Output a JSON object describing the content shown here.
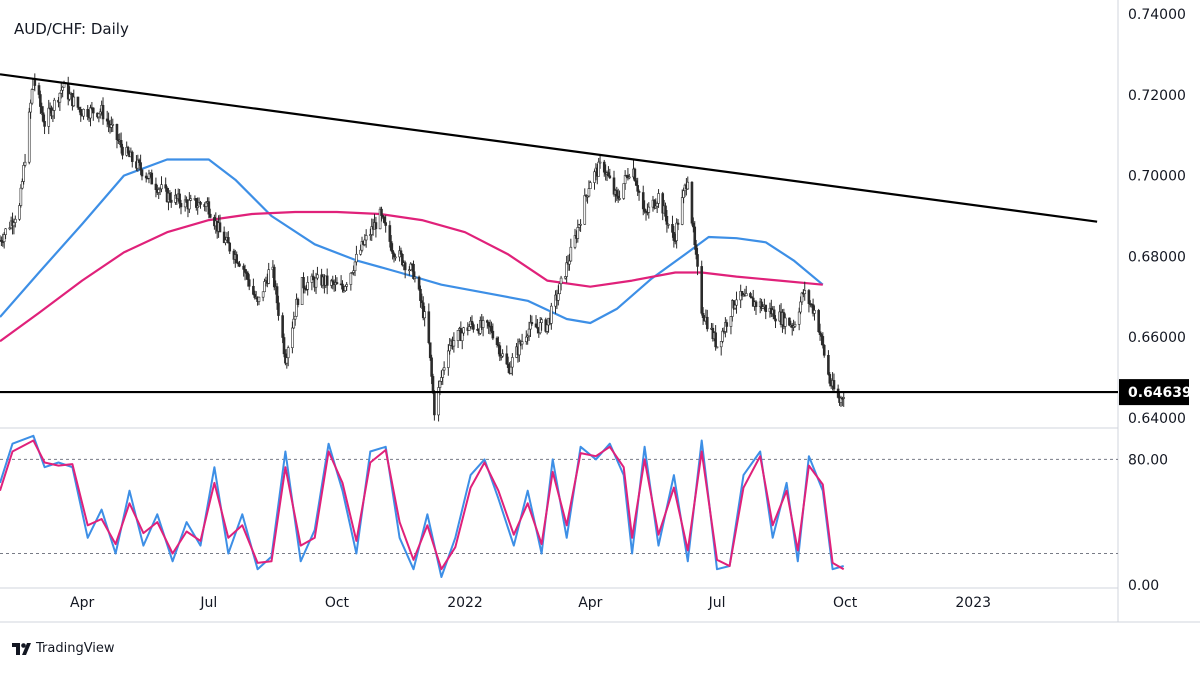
{
  "title": "AUD/CHF: Daily",
  "brand": {
    "name": "TradingView",
    "icon": "tradingview-logo-icon"
  },
  "colors": {
    "candle": "#2b2b2b",
    "sma_short": "#3d8fe6",
    "sma_long": "#e0217a",
    "trendline": "#000000",
    "stoch_k": "#3d8fe6",
    "stoch_d": "#e0217a",
    "price_badge_bg": "#000000",
    "price_badge_text": "#ffffff"
  },
  "chart_data": [
    {
      "type": "candlestick",
      "panel": "price",
      "title": "AUD/CHF: Daily",
      "x_axis": {
        "start": "2021-02-01",
        "end": "2023-04-15",
        "ticks": [
          {
            "date": "2021-04-01",
            "label": "Apr"
          },
          {
            "date": "2021-07-01",
            "label": "Jul"
          },
          {
            "date": "2021-10-01",
            "label": "Oct"
          },
          {
            "date": "2022-01-01",
            "label": "2022"
          },
          {
            "date": "2022-04-01",
            "label": "Apr"
          },
          {
            "date": "2022-07-01",
            "label": "Jul"
          },
          {
            "date": "2022-10-01",
            "label": "Oct"
          },
          {
            "date": "2023-01-01",
            "label": "2023"
          }
        ]
      },
      "y_axis": {
        "range": [
          0.6375,
          0.7435
        ],
        "ticks": [
          "0.64000",
          "0.66000",
          "0.68000",
          "0.70000",
          "0.72000",
          "0.74000"
        ]
      },
      "last_price": "0.64639",
      "price_path": [
        [
          "2021-02-01",
          0.684
        ],
        [
          "2021-02-15",
          0.692
        ],
        [
          "2021-02-25",
          0.724
        ],
        [
          "2021-03-05",
          0.713
        ],
        [
          "2021-03-18",
          0.722
        ],
        [
          "2021-03-31",
          0.716
        ],
        [
          "2021-04-15",
          0.716
        ],
        [
          "2021-05-01",
          0.706
        ],
        [
          "2021-05-15",
          0.701
        ],
        [
          "2021-06-01",
          0.695
        ],
        [
          "2021-06-15",
          0.693
        ],
        [
          "2021-06-30",
          0.693
        ],
        [
          "2021-07-10",
          0.685
        ],
        [
          "2021-07-25",
          0.678
        ],
        [
          "2021-08-05",
          0.668
        ],
        [
          "2021-08-15",
          0.678
        ],
        [
          "2021-08-25",
          0.655
        ],
        [
          "2021-09-05",
          0.673
        ],
        [
          "2021-09-20",
          0.674
        ],
        [
          "2021-10-05",
          0.672
        ],
        [
          "2021-10-20",
          0.683
        ],
        [
          "2021-11-01",
          0.69
        ],
        [
          "2021-11-10",
          0.682
        ],
        [
          "2021-11-25",
          0.676
        ],
        [
          "2021-12-05",
          0.662
        ],
        [
          "2021-12-10",
          0.642
        ],
        [
          "2021-12-20",
          0.658
        ],
        [
          "2022-01-05",
          0.663
        ],
        [
          "2022-01-20",
          0.662
        ],
        [
          "2022-02-01",
          0.652
        ],
        [
          "2022-02-15",
          0.662
        ],
        [
          "2022-03-01",
          0.663
        ],
        [
          "2022-03-10",
          0.672
        ],
        [
          "2022-03-20",
          0.683
        ],
        [
          "2022-04-01",
          0.699
        ],
        [
          "2022-04-10",
          0.703
        ],
        [
          "2022-04-20",
          0.694
        ],
        [
          "2022-05-01",
          0.703
        ],
        [
          "2022-05-10",
          0.69
        ],
        [
          "2022-05-20",
          0.695
        ],
        [
          "2022-05-31",
          0.684
        ],
        [
          "2022-06-10",
          0.7
        ],
        [
          "2022-06-15",
          0.682
        ],
        [
          "2022-06-20",
          0.667
        ],
        [
          "2022-07-01",
          0.658
        ],
        [
          "2022-07-15",
          0.67
        ],
        [
          "2022-08-01",
          0.668
        ],
        [
          "2022-08-15",
          0.665
        ],
        [
          "2022-08-25",
          0.663
        ],
        [
          "2022-09-01",
          0.671
        ],
        [
          "2022-09-10",
          0.666
        ],
        [
          "2022-09-20",
          0.649
        ],
        [
          "2022-09-27",
          0.644
        ],
        [
          "2022-09-30",
          0.6464
        ]
      ],
      "overlays": [
        {
          "kind": "moving_average",
          "color_key": "sma_short",
          "points": [
            [
              "2021-02-01",
              0.665
            ],
            [
              "2021-03-01",
              0.676
            ],
            [
              "2021-04-01",
              0.688
            ],
            [
              "2021-05-01",
              0.7
            ],
            [
              "2021-06-01",
              0.704
            ],
            [
              "2021-07-01",
              0.704
            ],
            [
              "2021-07-20",
              0.699
            ],
            [
              "2021-08-15",
              0.69
            ],
            [
              "2021-09-15",
              0.683
            ],
            [
              "2021-10-15",
              0.679
            ],
            [
              "2021-11-15",
              0.676
            ],
            [
              "2021-12-15",
              0.673
            ],
            [
              "2022-01-15",
              0.671
            ],
            [
              "2022-02-15",
              0.669
            ],
            [
              "2022-03-15",
              0.6645
            ],
            [
              "2022-04-01",
              0.6635
            ],
            [
              "2022-04-20",
              0.667
            ],
            [
              "2022-05-15",
              0.6745
            ],
            [
              "2022-06-10",
              0.681
            ],
            [
              "2022-06-25",
              0.6848
            ],
            [
              "2022-07-15",
              0.6845
            ],
            [
              "2022-08-05",
              0.6835
            ],
            [
              "2022-08-25",
              0.679
            ],
            [
              "2022-09-15",
              0.673
            ]
          ]
        },
        {
          "kind": "moving_average",
          "color_key": "sma_long",
          "points": [
            [
              "2021-02-01",
              0.659
            ],
            [
              "2021-03-01",
              0.666
            ],
            [
              "2021-04-01",
              0.674
            ],
            [
              "2021-05-01",
              0.681
            ],
            [
              "2021-06-01",
              0.686
            ],
            [
              "2021-07-01",
              0.689
            ],
            [
              "2021-08-01",
              0.6905
            ],
            [
              "2021-09-01",
              0.691
            ],
            [
              "2021-10-01",
              0.691
            ],
            [
              "2021-11-01",
              0.6905
            ],
            [
              "2021-12-01",
              0.689
            ],
            [
              "2022-01-01",
              0.686
            ],
            [
              "2022-02-01",
              0.6805
            ],
            [
              "2022-03-01",
              0.674
            ],
            [
              "2022-04-01",
              0.6725
            ],
            [
              "2022-05-01",
              0.674
            ],
            [
              "2022-06-01",
              0.676
            ],
            [
              "2022-06-20",
              0.676
            ],
            [
              "2022-07-15",
              0.675
            ],
            [
              "2022-08-15",
              0.674
            ],
            [
              "2022-09-15",
              0.673
            ]
          ]
        },
        {
          "kind": "trendline",
          "color_key": "trendline",
          "points": [
            [
              "2021-02-01",
              0.7251
            ],
            [
              "2023-03-31",
              0.6886
            ]
          ]
        },
        {
          "kind": "horizontal_line",
          "color_key": "trendline",
          "value": 0.6464
        }
      ]
    },
    {
      "type": "line",
      "panel": "oscillator",
      "y_axis": {
        "range": [
          -2,
          100
        ],
        "ticks": [
          "0.00",
          "80.00"
        ],
        "levels": [
          80,
          20
        ]
      },
      "series": [
        {
          "color_key": "stoch_k",
          "points": [
            [
              "2021-02-01",
              65
            ],
            [
              "2021-02-10",
              90
            ],
            [
              "2021-02-25",
              95
            ],
            [
              "2021-03-05",
              75
            ],
            [
              "2021-03-15",
              78
            ],
            [
              "2021-03-25",
              75
            ],
            [
              "2021-04-05",
              30
            ],
            [
              "2021-04-15",
              48
            ],
            [
              "2021-04-25",
              20
            ],
            [
              "2021-05-05",
              60
            ],
            [
              "2021-05-15",
              25
            ],
            [
              "2021-05-25",
              45
            ],
            [
              "2021-06-05",
              15
            ],
            [
              "2021-06-15",
              40
            ],
            [
              "2021-06-25",
              25
            ],
            [
              "2021-07-05",
              75
            ],
            [
              "2021-07-15",
              20
            ],
            [
              "2021-07-25",
              45
            ],
            [
              "2021-08-05",
              10
            ],
            [
              "2021-08-15",
              18
            ],
            [
              "2021-08-25",
              85
            ],
            [
              "2021-09-05",
              15
            ],
            [
              "2021-09-15",
              35
            ],
            [
              "2021-09-25",
              90
            ],
            [
              "2021-10-05",
              60
            ],
            [
              "2021-10-15",
              20
            ],
            [
              "2021-10-25",
              85
            ],
            [
              "2021-11-05",
              88
            ],
            [
              "2021-11-15",
              30
            ],
            [
              "2021-11-25",
              10
            ],
            [
              "2021-12-05",
              45
            ],
            [
              "2021-12-15",
              5
            ],
            [
              "2021-12-25",
              30
            ],
            [
              "2022-01-05",
              70
            ],
            [
              "2022-01-15",
              80
            ],
            [
              "2022-01-25",
              55
            ],
            [
              "2022-02-05",
              25
            ],
            [
              "2022-02-15",
              60
            ],
            [
              "2022-02-25",
              20
            ],
            [
              "2022-03-05",
              80
            ],
            [
              "2022-03-15",
              30
            ],
            [
              "2022-03-25",
              88
            ],
            [
              "2022-04-05",
              80
            ],
            [
              "2022-04-15",
              90
            ],
            [
              "2022-04-25",
              70
            ],
            [
              "2022-05-01",
              20
            ],
            [
              "2022-05-10",
              88
            ],
            [
              "2022-05-20",
              25
            ],
            [
              "2022-05-31",
              70
            ],
            [
              "2022-06-10",
              15
            ],
            [
              "2022-06-20",
              92
            ],
            [
              "2022-07-01",
              10
            ],
            [
              "2022-07-10",
              12
            ],
            [
              "2022-07-20",
              70
            ],
            [
              "2022-08-01",
              85
            ],
            [
              "2022-08-10",
              30
            ],
            [
              "2022-08-20",
              65
            ],
            [
              "2022-08-28",
              15
            ],
            [
              "2022-09-05",
              82
            ],
            [
              "2022-09-15",
              60
            ],
            [
              "2022-09-22",
              10
            ],
            [
              "2022-09-30",
              12
            ]
          ]
        },
        {
          "color_key": "stoch_d",
          "points": [
            [
              "2021-02-01",
              60
            ],
            [
              "2021-02-10",
              85
            ],
            [
              "2021-02-25",
              92
            ],
            [
              "2021-03-05",
              78
            ],
            [
              "2021-03-15",
              76
            ],
            [
              "2021-03-25",
              77
            ],
            [
              "2021-04-05",
              38
            ],
            [
              "2021-04-15",
              42
            ],
            [
              "2021-04-25",
              26
            ],
            [
              "2021-05-05",
              52
            ],
            [
              "2021-05-15",
              33
            ],
            [
              "2021-05-25",
              40
            ],
            [
              "2021-06-05",
              20
            ],
            [
              "2021-06-15",
              34
            ],
            [
              "2021-06-25",
              28
            ],
            [
              "2021-07-05",
              65
            ],
            [
              "2021-07-15",
              30
            ],
            [
              "2021-07-25",
              38
            ],
            [
              "2021-08-05",
              14
            ],
            [
              "2021-08-15",
              15
            ],
            [
              "2021-08-25",
              75
            ],
            [
              "2021-09-05",
              25
            ],
            [
              "2021-09-15",
              30
            ],
            [
              "2021-09-25",
              85
            ],
            [
              "2021-10-05",
              65
            ],
            [
              "2021-10-15",
              28
            ],
            [
              "2021-10-25",
              78
            ],
            [
              "2021-11-05",
              86
            ],
            [
              "2021-11-15",
              40
            ],
            [
              "2021-11-25",
              16
            ],
            [
              "2021-12-05",
              38
            ],
            [
              "2021-12-15",
              10
            ],
            [
              "2021-12-25",
              24
            ],
            [
              "2022-01-05",
              62
            ],
            [
              "2022-01-15",
              78
            ],
            [
              "2022-01-25",
              60
            ],
            [
              "2022-02-05",
              32
            ],
            [
              "2022-02-15",
              52
            ],
            [
              "2022-02-25",
              26
            ],
            [
              "2022-03-05",
              72
            ],
            [
              "2022-03-15",
              38
            ],
            [
              "2022-03-25",
              84
            ],
            [
              "2022-04-05",
              82
            ],
            [
              "2022-04-15",
              88
            ],
            [
              "2022-04-25",
              75
            ],
            [
              "2022-05-01",
              30
            ],
            [
              "2022-05-10",
              80
            ],
            [
              "2022-05-20",
              32
            ],
            [
              "2022-05-31",
              62
            ],
            [
              "2022-06-10",
              22
            ],
            [
              "2022-06-20",
              85
            ],
            [
              "2022-07-01",
              16
            ],
            [
              "2022-07-10",
              12
            ],
            [
              "2022-07-20",
              62
            ],
            [
              "2022-08-01",
              82
            ],
            [
              "2022-08-10",
              38
            ],
            [
              "2022-08-20",
              60
            ],
            [
              "2022-08-28",
              22
            ],
            [
              "2022-09-05",
              76
            ],
            [
              "2022-09-15",
              64
            ],
            [
              "2022-09-22",
              14
            ],
            [
              "2022-09-30",
              10
            ]
          ]
        }
      ]
    }
  ]
}
